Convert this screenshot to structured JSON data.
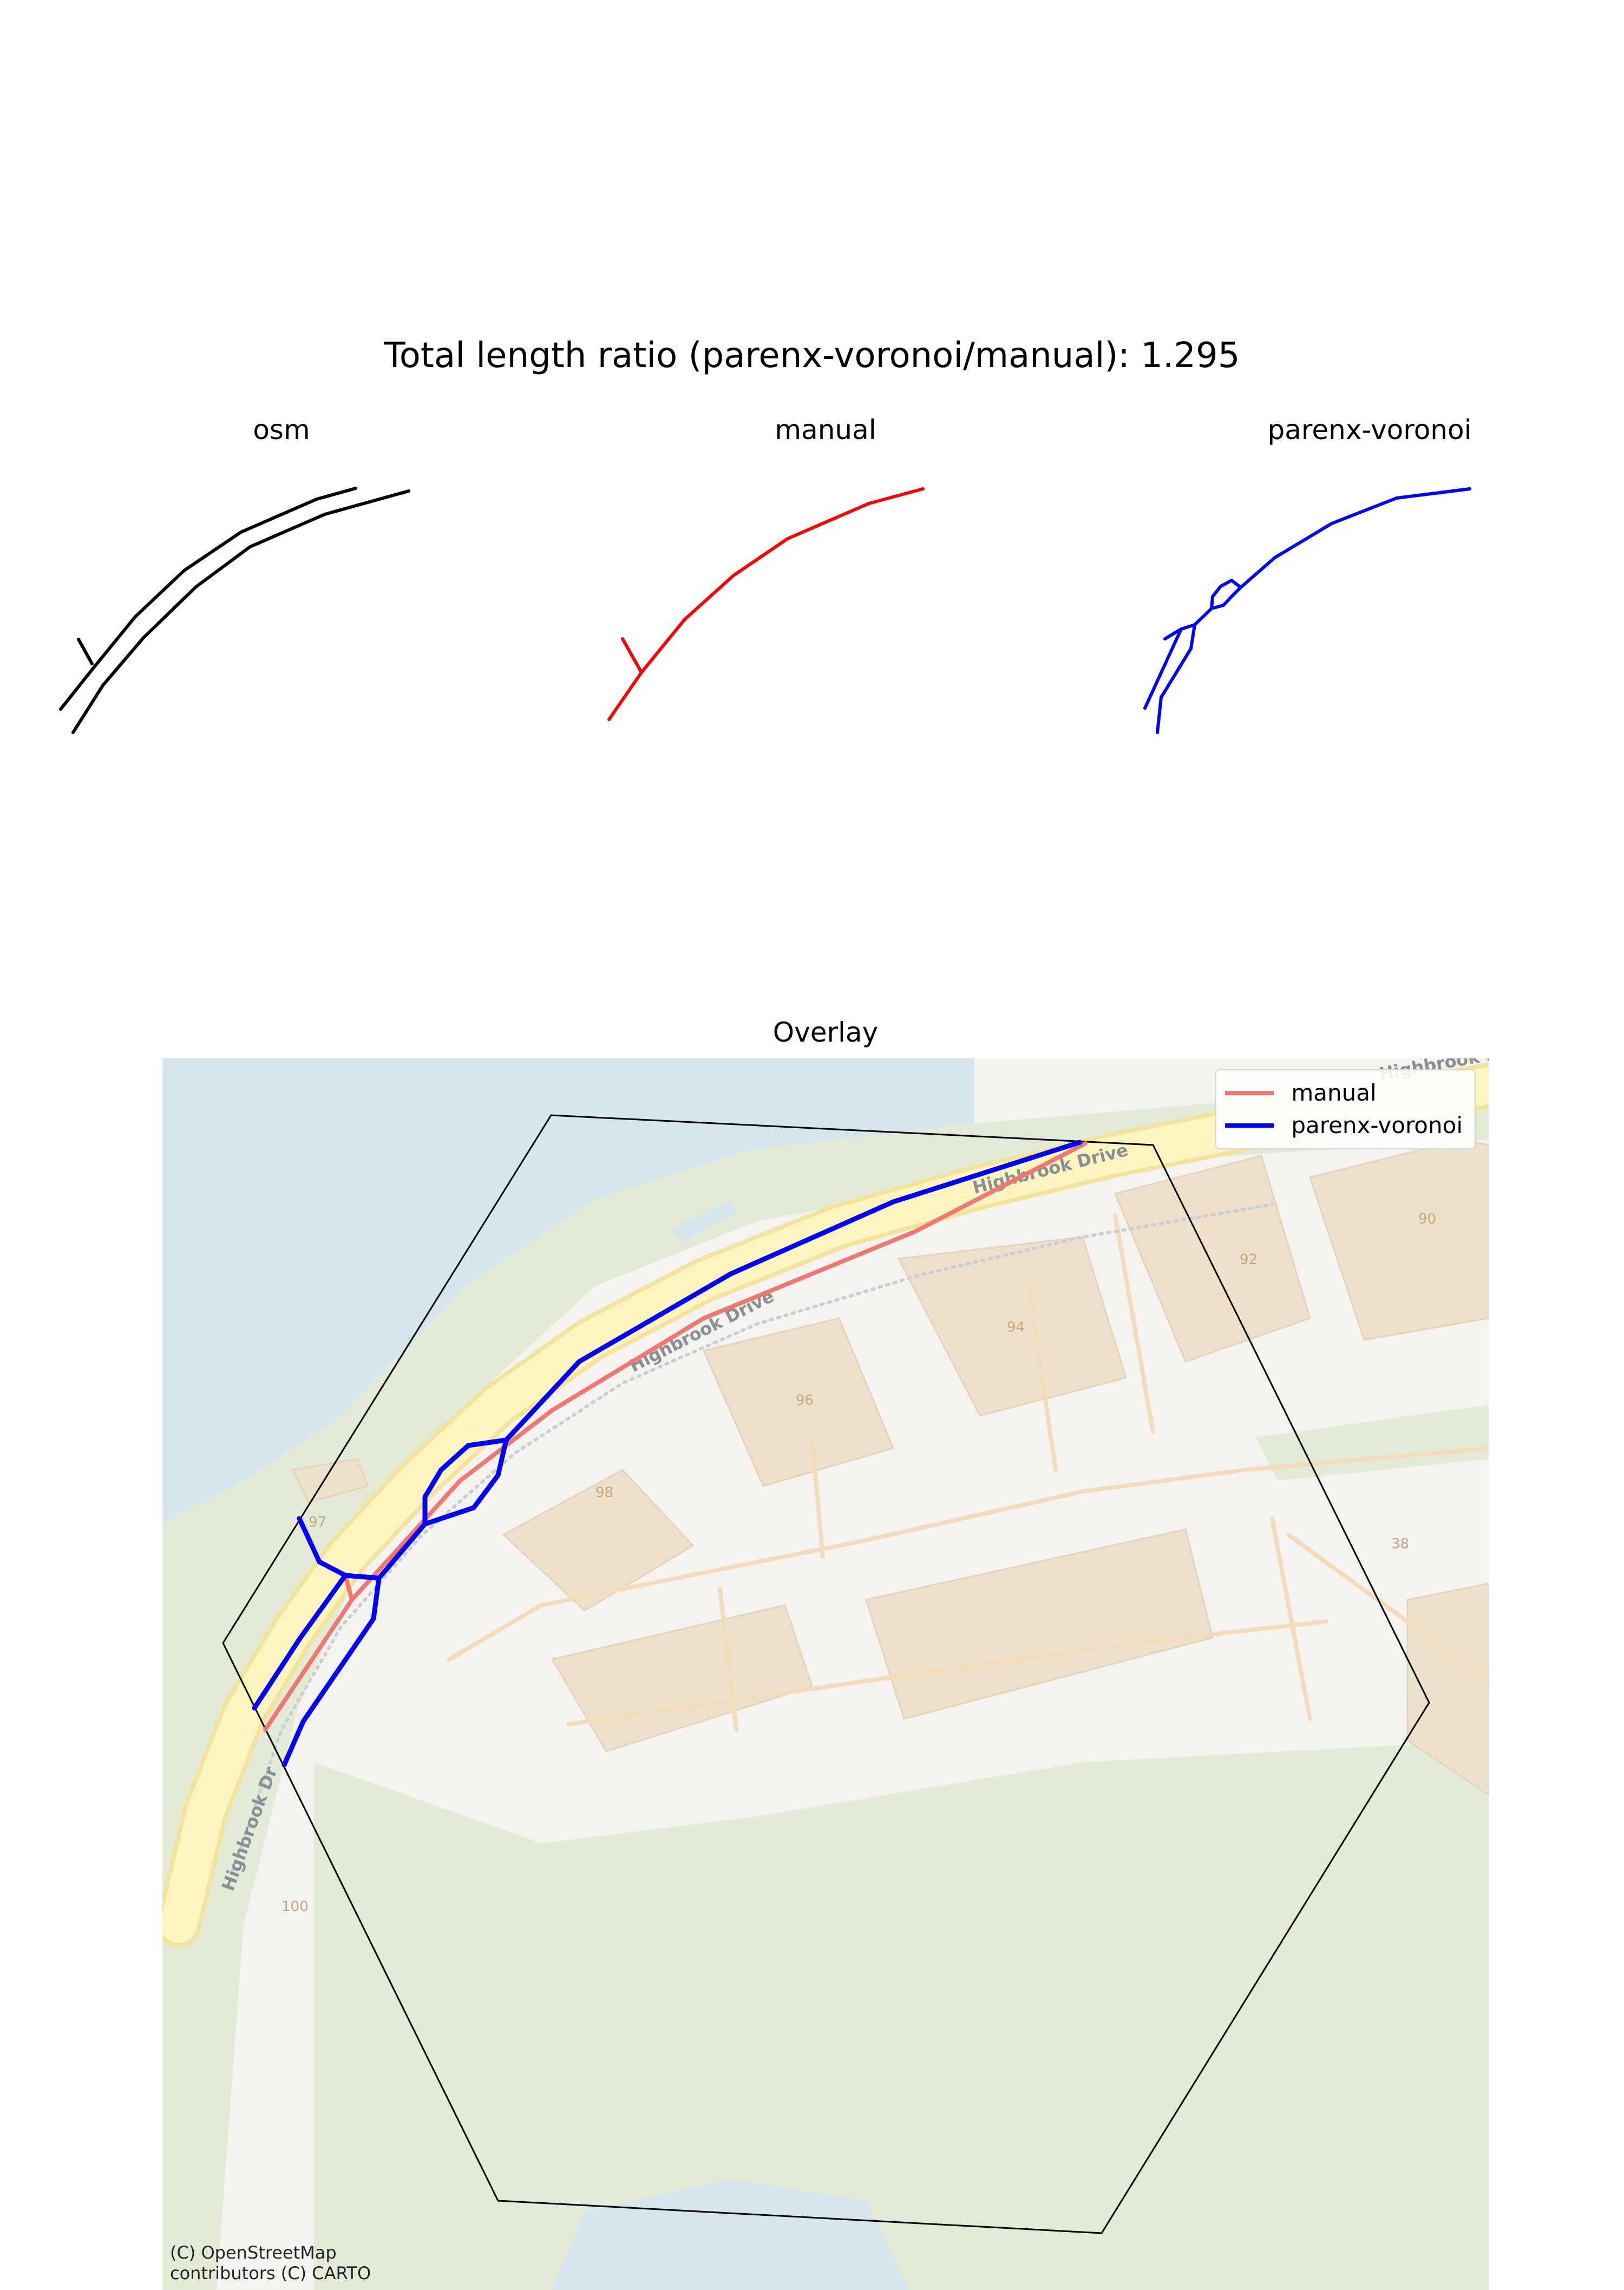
{
  "figure": {
    "title": "Total length ratio (parenx-voronoi/manual): 1.295",
    "panels": [
      {
        "title": "osm",
        "color": "#000000"
      },
      {
        "title": "manual",
        "color": "#ff0000"
      },
      {
        "title": "parenx-voronoi",
        "color": "#0000ff"
      }
    ],
    "overlay": {
      "title": "Overlay",
      "legend": [
        {
          "label": "manual",
          "color": "#f07870"
        },
        {
          "label": "parenx-voronoi",
          "color": "#0000ff"
        }
      ],
      "attribution": "(C) OpenStreetMap contributors (C) CARTO",
      "road_names": [
        "Highbrook Drive",
        "Highbrook Drive",
        "Highbrook Dri",
        "Highbrook Dr"
      ],
      "building_numbers": [
        "90",
        "92",
        "94",
        "96",
        "98",
        "97",
        "38",
        "100"
      ]
    }
  },
  "map_colors": {
    "water": "#d5e6ec",
    "park": "#e3ebd6",
    "land": "#f5f3ef",
    "building": "#ede1cc",
    "road_fill": "#fdf5c0",
    "road_casing": "#f3e49d",
    "footpath": "#f2dcbc",
    "boundary_hexagon": "#000000"
  }
}
